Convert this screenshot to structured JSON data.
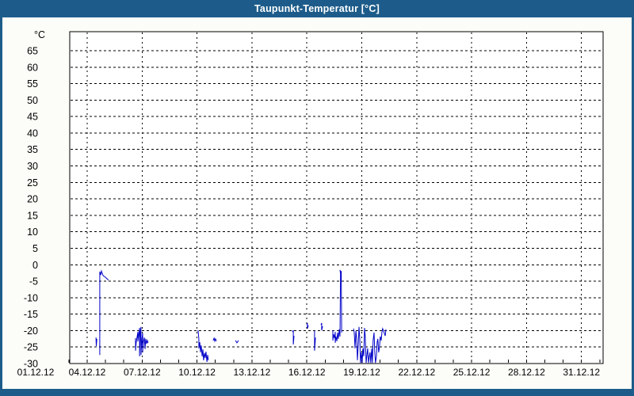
{
  "window": {
    "title": "Taupunkt-Temperatur [°C]"
  },
  "colors": {
    "frame_blue": "#1d5c8a",
    "title_text": "#ffffff",
    "content_bg": "#fcfdf8",
    "plot_bg": "#ffffff",
    "grid_black": "#000000",
    "series_blue": "#0000c8"
  },
  "chart_data": {
    "type": "line",
    "title": "Taupunkt-Temperatur [°C]",
    "y_unit_label": "°C",
    "ylim": [
      -30,
      70
    ],
    "y_ticks": [
      65,
      60,
      55,
      50,
      45,
      40,
      35,
      30,
      25,
      20,
      15,
      10,
      5,
      0,
      -5,
      -10,
      -15,
      -20,
      -25,
      -30
    ],
    "x_tick_labels": [
      {
        "day": 1,
        "label": "01.12.12"
      },
      {
        "day": 4,
        "label": "04.12.12"
      },
      {
        "day": 7,
        "label": "07.12.12"
      },
      {
        "day": 10,
        "label": "10.12.12"
      },
      {
        "day": 13,
        "label": "13.12.12"
      },
      {
        "day": 16,
        "label": "16.12.12"
      },
      {
        "day": 19,
        "label": "19.12.12"
      },
      {
        "day": 22,
        "label": "22.12.12"
      },
      {
        "day": 25,
        "label": "25.12.12"
      },
      {
        "day": 28,
        "label": "28.12.12"
      },
      {
        "day": 31,
        "label": "31.12.12"
      }
    ],
    "x_gridline_days": [
      4,
      7,
      10,
      13,
      16,
      19,
      22,
      25,
      28,
      31
    ],
    "x_minor_tick_days_range": [
      3,
      32
    ],
    "grid": "dashed",
    "legend": "none",
    "series": [
      {
        "name": "Taupunkt",
        "color": "#0000c8",
        "unit": "°C",
        "x_unit": "day of December 2012 (decimal)",
        "segments": [
          [
            [
              4.48,
              -22.1
            ],
            [
              4.5,
              -24.7
            ],
            [
              4.53,
              -22.5
            ]
          ],
          [
            [
              4.69,
              -27.4
            ],
            [
              4.69,
              -2.1
            ],
            [
              4.74,
              -3.1
            ],
            [
              4.78,
              -1.9
            ],
            [
              4.87,
              -3.3
            ],
            [
              5.0,
              -3.8
            ],
            [
              5.17,
              -4.7
            ]
          ],
          [
            [
              6.64,
              -22.3
            ],
            [
              6.64,
              -26.1
            ],
            [
              6.68,
              -23.5
            ],
            [
              6.77,
              -20.4
            ],
            [
              6.77,
              -23.3
            ],
            [
              6.86,
              -19.2
            ],
            [
              6.86,
              -27.8
            ],
            [
              6.9,
              -20.6
            ],
            [
              6.94,
              -18.9
            ],
            [
              6.94,
              -27.4
            ],
            [
              6.99,
              -22.5
            ],
            [
              7.03,
              -20.8
            ],
            [
              7.03,
              -26.6
            ],
            [
              7.07,
              -23.5
            ],
            [
              7.12,
              -22.1
            ],
            [
              7.16,
              -25.6
            ],
            [
              7.2,
              -22.5
            ],
            [
              7.25,
              -24.0
            ],
            [
              7.29,
              -23.0
            ],
            [
              7.33,
              -23.7
            ]
          ],
          [
            [
              10.02,
              -20.1
            ],
            [
              10.06,
              -20.1
            ],
            [
              10.1,
              -22.5
            ],
            [
              10.1,
              -25.4
            ],
            [
              10.15,
              -23.5
            ],
            [
              10.19,
              -26.6
            ],
            [
              10.23,
              -24.5
            ],
            [
              10.28,
              -27.8
            ],
            [
              10.32,
              -25.7
            ],
            [
              10.36,
              -29.0
            ],
            [
              10.41,
              -26.8
            ],
            [
              10.45,
              -28.3
            ],
            [
              10.49,
              -26.4
            ],
            [
              10.54,
              -29.5
            ],
            [
              10.58,
              -27.4
            ],
            [
              10.62,
              -29.0
            ]
          ],
          [
            [
              10.88,
              -23.0
            ],
            [
              10.93,
              -22.3
            ],
            [
              10.97,
              -23.2
            ],
            [
              11.01,
              -22.5
            ],
            [
              11.06,
              -23.2
            ]
          ],
          [
            [
              12.1,
              -23.0
            ],
            [
              12.18,
              -23.7
            ],
            [
              12.27,
              -23.0
            ]
          ],
          [
            [
              15.21,
              -20.4
            ],
            [
              15.26,
              -19.9
            ],
            [
              15.26,
              -24.2
            ],
            [
              15.3,
              -21.6
            ]
          ],
          [
            [
              16.0,
              -18.2
            ],
            [
              16.03,
              -17.7
            ],
            [
              16.03,
              -19.4
            ],
            [
              16.08,
              -18.4
            ]
          ],
          [
            [
              16.42,
              -20.1
            ],
            [
              16.42,
              -26.1
            ],
            [
              16.47,
              -22.1
            ]
          ],
          [
            [
              16.77,
              -18.2
            ],
            [
              16.81,
              -17.7
            ],
            [
              16.81,
              -19.9
            ],
            [
              16.86,
              -18.7
            ]
          ],
          [
            [
              17.42,
              -19.9
            ],
            [
              17.42,
              -23.0
            ],
            [
              17.46,
              -21.1
            ],
            [
              17.51,
              -22.3
            ],
            [
              17.55,
              -20.4
            ],
            [
              17.55,
              -23.7
            ],
            [
              17.59,
              -21.8
            ],
            [
              17.64,
              -23.2
            ],
            [
              17.68,
              -20.6
            ],
            [
              17.72,
              -22.5
            ],
            [
              17.77,
              -19.6
            ],
            [
              17.81,
              -21.8
            ],
            [
              17.84,
              -2.1
            ],
            [
              17.81,
              -1.6
            ],
            [
              17.86,
              -3.5
            ],
            [
              17.88,
              -1.9
            ],
            [
              17.9,
              -20.6
            ]
          ],
          [
            [
              18.55,
              -19.4
            ],
            [
              18.59,
              -20.6
            ],
            [
              18.63,
              -25.4
            ],
            [
              18.68,
              -20.1
            ],
            [
              18.72,
              -22.1
            ],
            [
              18.76,
              -29.0
            ],
            [
              18.81,
              -24.2
            ],
            [
              18.85,
              -18.9
            ],
            [
              18.89,
              -22.5
            ],
            [
              18.93,
              -29.8
            ],
            [
              18.98,
              -26.6
            ],
            [
              19.02,
              -29.8
            ],
            [
              19.06,
              -25.4
            ],
            [
              19.11,
              -27.8
            ],
            [
              19.15,
              -19.2
            ],
            [
              19.19,
              -21.8
            ],
            [
              19.24,
              -29.8
            ],
            [
              19.28,
              -27.4
            ],
            [
              19.32,
              -25.4
            ],
            [
              19.37,
              -29.8
            ],
            [
              19.41,
              -27.8
            ],
            [
              19.45,
              -26.6
            ],
            [
              19.49,
              -29.8
            ],
            [
              19.54,
              -25.4
            ],
            [
              19.58,
              -29.8
            ],
            [
              19.62,
              -23.0
            ],
            [
              19.67,
              -20.6
            ],
            [
              19.71,
              -26.6
            ],
            [
              19.75,
              -29.8
            ],
            [
              19.8,
              -27.8
            ],
            [
              19.84,
              -23.5
            ],
            [
              19.88,
              -22.5
            ],
            [
              19.92,
              -26.6
            ],
            [
              19.97,
              -24.9
            ],
            [
              20.01,
              -21.8
            ],
            [
              20.06,
              -23.0
            ],
            [
              20.1,
              -20.6
            ],
            [
              20.14,
              -19.4
            ],
            [
              20.19,
              -20.1
            ],
            [
              20.28,
              -21.6
            ],
            [
              20.32,
              -19.6
            ]
          ]
        ]
      }
    ]
  }
}
